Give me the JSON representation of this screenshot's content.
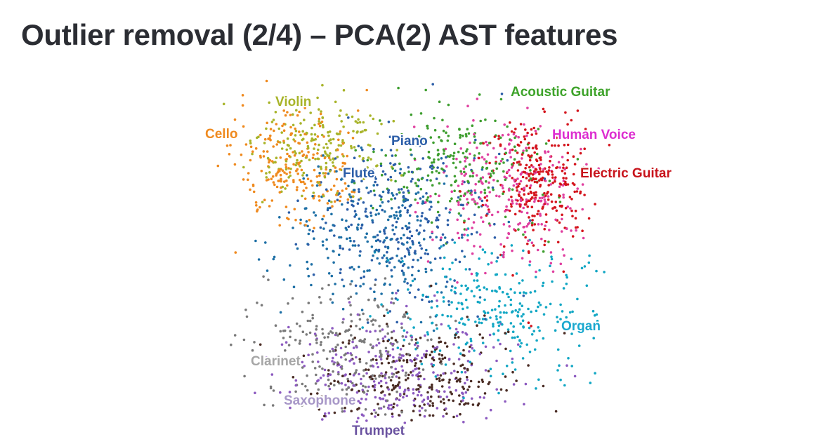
{
  "slide": {
    "title": "Outlier removal (2/4) – PCA(2) AST features"
  },
  "chart_data": {
    "type": "scatter",
    "title": "",
    "xlabel": "",
    "ylabel": "",
    "axes_visible": false,
    "grid": false,
    "legend": "none (series labelled directly on clusters)",
    "xlim": [
      0,
      100
    ],
    "ylim": [
      0,
      100
    ],
    "series": [
      {
        "name": "Violin",
        "color": "#a8b42a",
        "center": [
          30,
          79
        ],
        "spread": [
          8,
          7
        ],
        "count": 200
      },
      {
        "name": "Cello",
        "color": "#ef8a1f",
        "center": [
          23,
          74
        ],
        "spread": [
          7,
          8
        ],
        "count": 230
      },
      {
        "name": "Piano",
        "color": "#2c5ea8",
        "center": [
          48,
          60
        ],
        "spread": [
          11,
          12
        ],
        "count": 260
      },
      {
        "name": "Flute",
        "color": "#1d6fa5",
        "center": [
          43,
          55
        ],
        "spread": [
          10,
          11
        ],
        "count": 260
      },
      {
        "name": "Acoustic Guitar",
        "color": "#3e9e2f",
        "center": [
          62,
          76
        ],
        "spread": [
          10,
          9
        ],
        "count": 230
      },
      {
        "name": "Human Voice",
        "color": "#e040a0",
        "center": [
          73,
          68
        ],
        "spread": [
          9,
          11
        ],
        "count": 260
      },
      {
        "name": "Electric Guitar",
        "color": "#d4141c",
        "center": [
          81,
          70
        ],
        "spread": [
          6,
          10
        ],
        "count": 280
      },
      {
        "name": "Organ",
        "color": "#12a7c4",
        "center": [
          72,
          34
        ],
        "spread": [
          11,
          9
        ],
        "count": 280
      },
      {
        "name": "Clarinet",
        "color": "#7a7a7a",
        "center": [
          36,
          22
        ],
        "spread": [
          11,
          9
        ],
        "count": 230
      },
      {
        "name": "Saxophone",
        "color": "#8c5ac0",
        "center": [
          47,
          15
        ],
        "spread": [
          14,
          8
        ],
        "count": 300
      },
      {
        "name": "Trumpet",
        "color": "#4a2c24",
        "center": [
          52,
          14
        ],
        "spread": [
          12,
          7
        ],
        "count": 260
      }
    ]
  },
  "labels": [
    {
      "text": "Violin",
      "color": "#a8b42a"
    },
    {
      "text": "Cello",
      "color": "#ef8a1f"
    },
    {
      "text": "Piano",
      "color": "#2c5ea8"
    },
    {
      "text": "Flute",
      "color": "#2c5ea8"
    },
    {
      "text": "Acoustic Guitar",
      "color": "#3ea32a"
    },
    {
      "text": "Human Voice",
      "color": "#dd2ed0"
    },
    {
      "text": "Electric Guitar",
      "color": "#c8141c"
    },
    {
      "text": "Organ",
      "color": "#1aa8cf"
    },
    {
      "text": "Clarinet",
      "color": "#a6a6a6"
    },
    {
      "text": "Saxophone",
      "color": "#a898c8"
    },
    {
      "text": "Trumpet",
      "color": "#6a52a0"
    }
  ]
}
